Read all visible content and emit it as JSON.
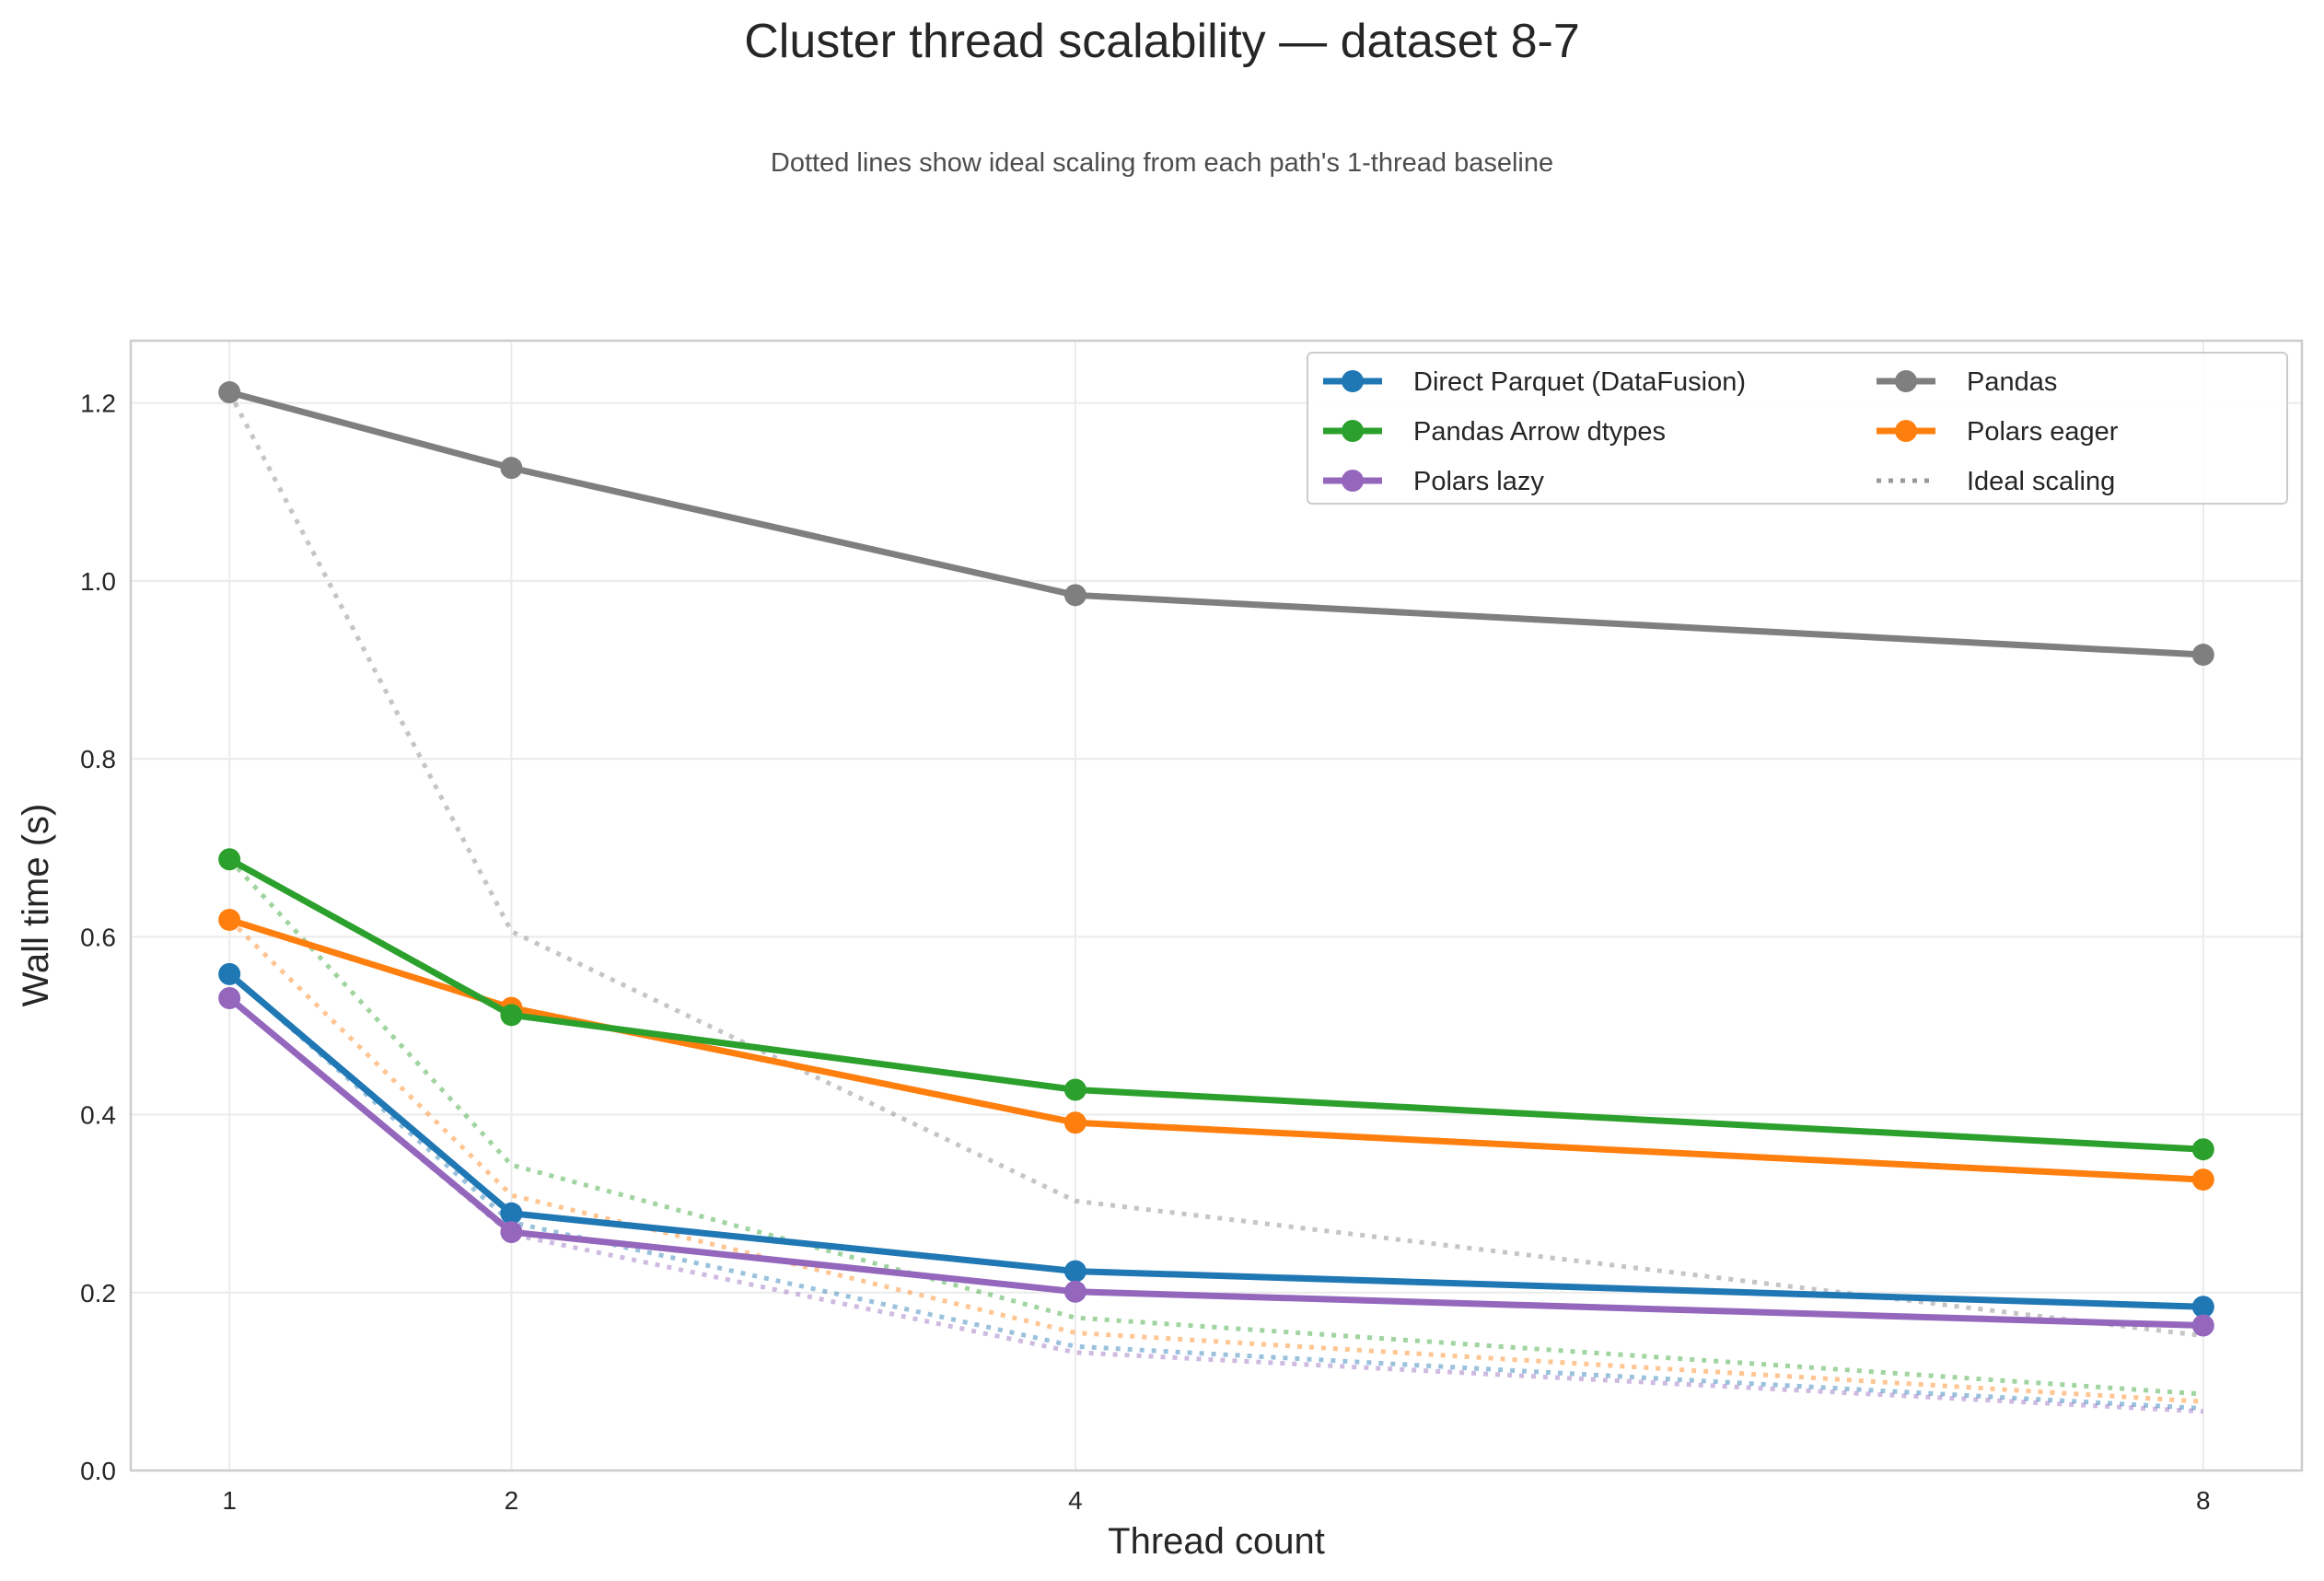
{
  "chart_data": {
    "type": "line",
    "title": "Cluster thread scalability — dataset 8-7",
    "subtitle": "Dotted lines show ideal scaling from each path's 1-thread baseline",
    "xlabel": "Thread count",
    "ylabel": "Wall time (s)",
    "x": [
      1,
      2,
      4,
      8
    ],
    "x_ticks": [
      "1",
      "2",
      "4",
      "8"
    ],
    "y_ticks": [
      "0.0",
      "0.2",
      "0.4",
      "0.6",
      "0.8",
      "1.0",
      "1.2"
    ],
    "xlim": [
      0.65,
      8.35
    ],
    "ylim": [
      0,
      1.27
    ],
    "grid": true,
    "legend_position": "top-right",
    "series": [
      {
        "name": "Direct Parquet (DataFusion)",
        "color": "#1f77b4",
        "values": [
          0.558,
          0.289,
          0.224,
          0.184
        ]
      },
      {
        "name": "Polars lazy",
        "color": "#9467bd",
        "values": [
          0.531,
          0.268,
          0.201,
          0.163
        ]
      },
      {
        "name": "Polars eager",
        "color": "#ff7f0e",
        "values": [
          0.619,
          0.52,
          0.391,
          0.327
        ]
      },
      {
        "name": "Pandas Arrow dtypes",
        "color": "#2ca02c",
        "values": [
          0.687,
          0.512,
          0.428,
          0.361
        ]
      },
      {
        "name": "Pandas",
        "color": "#7f7f7f",
        "values": [
          1.212,
          1.127,
          0.984,
          0.917
        ]
      }
    ],
    "ideal_label": "Ideal scaling",
    "legend_order": [
      0,
      3,
      1,
      4,
      2
    ]
  }
}
